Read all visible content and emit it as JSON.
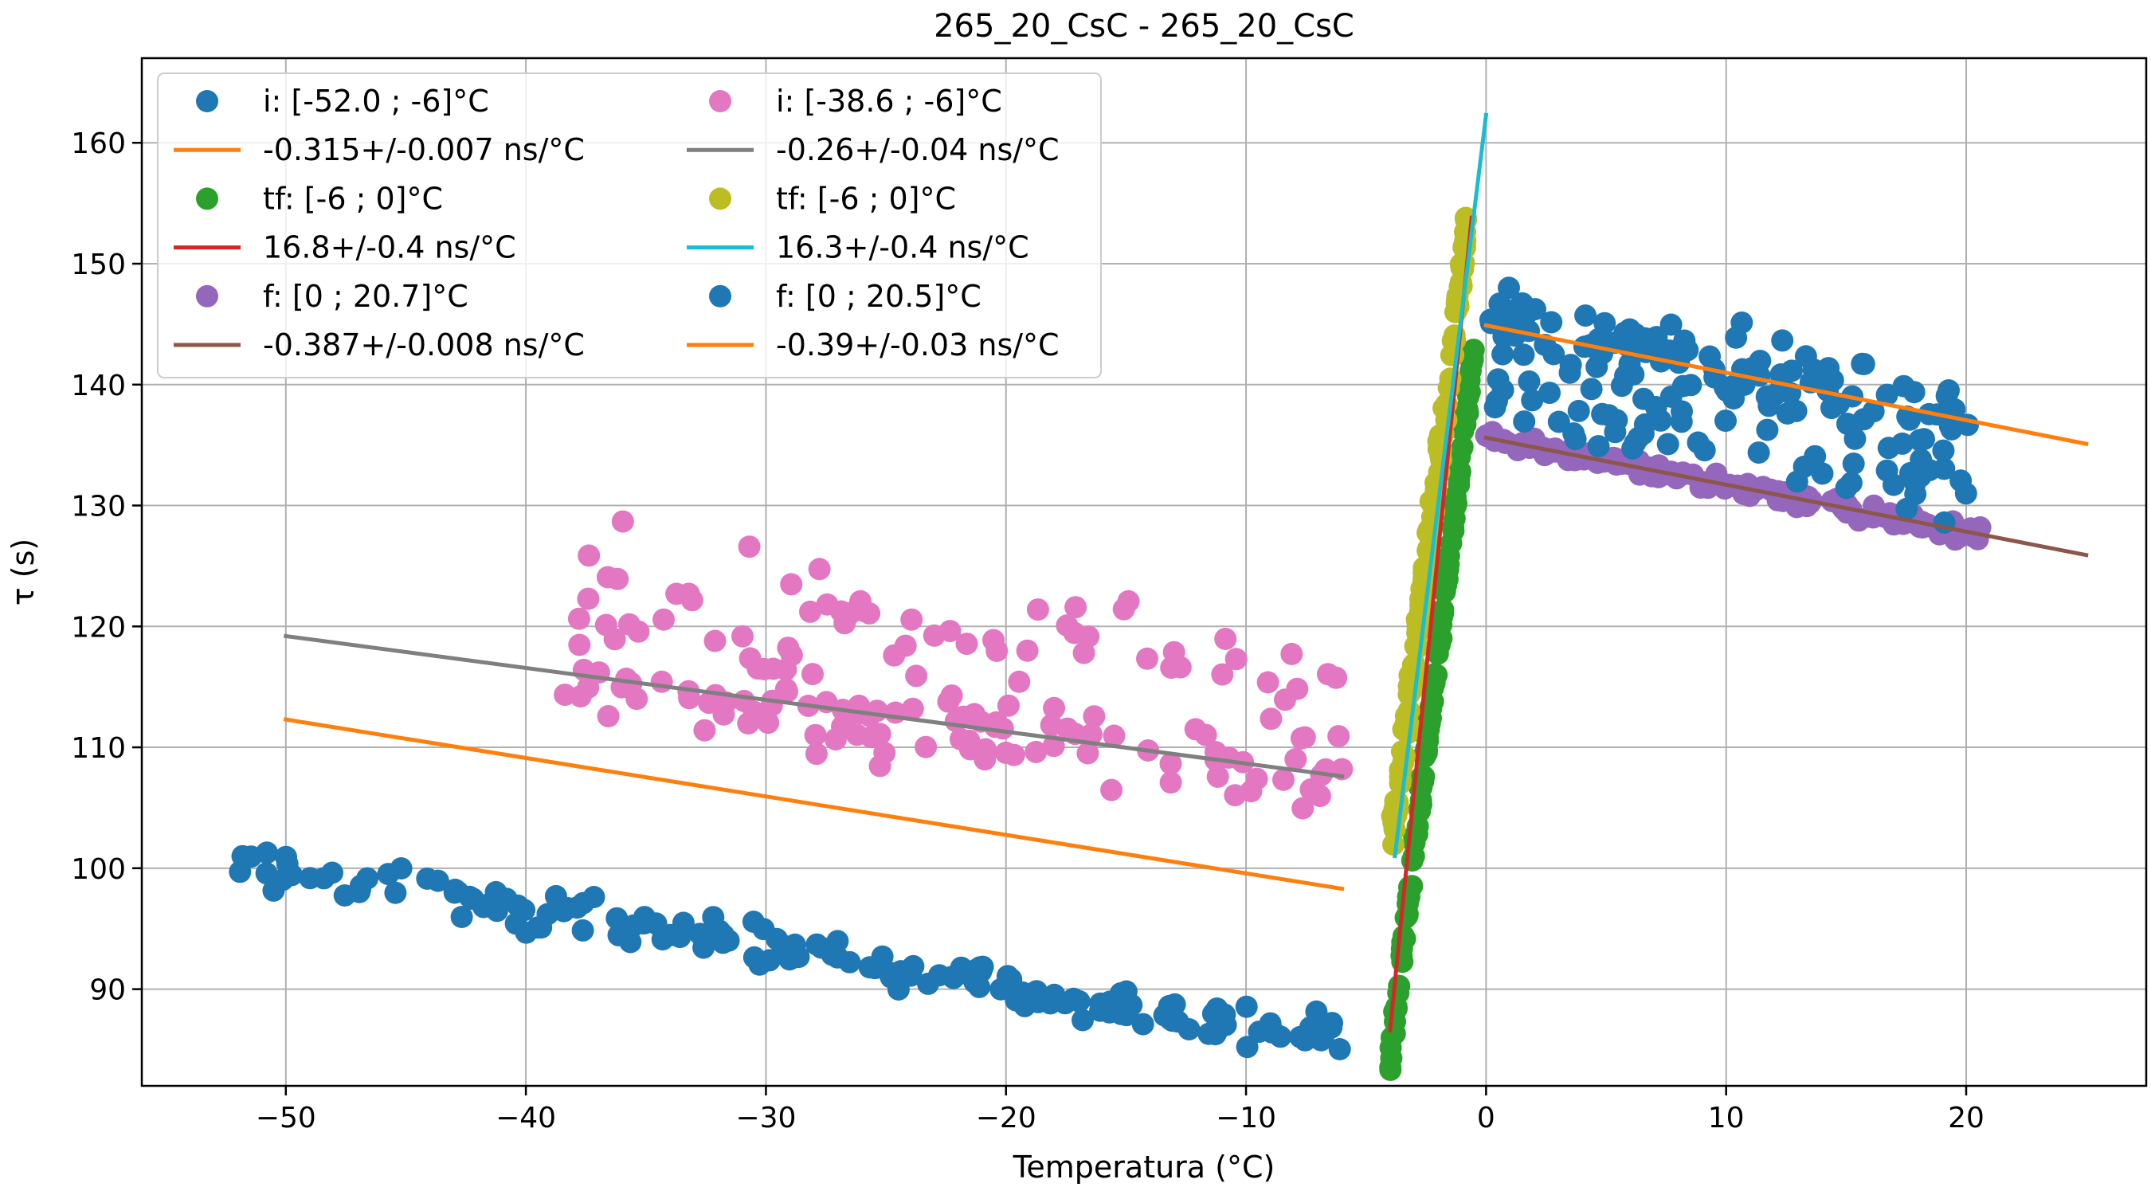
{
  "colors": {
    "blue": "#1f77b4",
    "orange": "#ff7f0e",
    "green": "#2ca02c",
    "red": "#d62728",
    "purple": "#9467bd",
    "brown": "#8c564b",
    "pink": "#e377c2",
    "gray": "#7f7f7f",
    "olive": "#bcbd22",
    "cyan": "#17becf"
  },
  "chart_data": {
    "type": "scatter",
    "title": "265_20_CsC - 265_20_CsC",
    "xlabel": "Temperatura (°C)",
    "ylabel": "τ (s)",
    "xlim": [
      -56,
      27.5
    ],
    "ylim": [
      82,
      167
    ],
    "xticks": [
      -50,
      -40,
      -30,
      -20,
      -10,
      0,
      10,
      20
    ],
    "xtick_labels": [
      "−50",
      "−40",
      "−30",
      "−20",
      "−10",
      "0",
      "10",
      "20"
    ],
    "yticks": [
      90,
      100,
      110,
      120,
      130,
      140,
      150,
      160
    ],
    "ytick_labels": [
      "90",
      "100",
      "110",
      "120",
      "130",
      "140",
      "150",
      "160"
    ],
    "grid": true,
    "legend_position": "upper-left",
    "scatter_series": [
      {
        "name": "i: [-52.0 ; -6]°C",
        "color": "#1f77b4",
        "x_range": [
          -52.0,
          -6.0
        ],
        "base_at_x0": 84.0,
        "slope": -0.315,
        "noise": 2.0
      },
      {
        "name": "tf: [-6 ; 0]°C",
        "color": "#2ca02c",
        "x_range": [
          -4.0,
          -0.5
        ],
        "base_at_x0": 151.6,
        "slope": 16.8,
        "noise": 1.5
      },
      {
        "name": "f: [0 ; 20.7]°C",
        "color": "#9467bd",
        "x_range": [
          0.0,
          20.7
        ],
        "base_at_x0": 135.6,
        "slope": -0.387,
        "noise": 0.8
      },
      {
        "name": "i: [-38.6 ; -6]°C",
        "color": "#e377c2",
        "x_range": [
          -38.6,
          -6.0
        ],
        "base_at_x0": 106.0,
        "slope": -0.26,
        "noise": 5.0
      },
      {
        "name": "tf: [-6 ; 0]°C",
        "color": "#bcbd22",
        "x_range": [
          -4.0,
          -0.8
        ],
        "base_at_x0": 166.0,
        "slope": 16.3,
        "noise": 2.0
      },
      {
        "name": "f: [0 ; 20.5]°C",
        "color": "#1f77b4",
        "x_range": [
          0.0,
          20.5
        ],
        "base_at_x0": 145.0,
        "slope": -0.39,
        "noise": 4.0
      }
    ],
    "fit_lines": [
      {
        "name": "-0.315+/-0.007 ns/°C",
        "color": "#ff7f0e",
        "x": [
          -50,
          -6
        ],
        "y": [
          112.3,
          98.3
        ]
      },
      {
        "name": "16.8+/-0.4 ns/°C",
        "color": "#d62728",
        "x": [
          -4,
          -0.6
        ],
        "y": [
          86.6,
          153.8
        ]
      },
      {
        "name": "-0.387+/-0.008 ns/°C",
        "color": "#8c564b",
        "x": [
          0,
          25
        ],
        "y": [
          135.6,
          125.9
        ]
      },
      {
        "name": "-0.26+/-0.04 ns/°C",
        "color": "#7f7f7f",
        "x": [
          -50,
          -6
        ],
        "y": [
          119.2,
          107.6
        ]
      },
      {
        "name": "16.3+/-0.4 ns/°C",
        "color": "#17becf",
        "x": [
          -3.8,
          0
        ],
        "y": [
          101.0,
          162.3
        ]
      },
      {
        "name": "-0.39+/-0.03 ns/°C",
        "color": "#ff7f0e",
        "x": [
          0,
          25
        ],
        "y": [
          144.9,
          135.1
        ]
      }
    ],
    "legend": {
      "columns": [
        [
          {
            "kind": "marker",
            "label": "i: [-52.0 ; -6]°C",
            "color": "#1f77b4"
          },
          {
            "kind": "line",
            "label": "-0.315+/-0.007 ns/°C",
            "color": "#ff7f0e"
          },
          {
            "kind": "marker",
            "label": "tf: [-6 ; 0]°C",
            "color": "#2ca02c"
          },
          {
            "kind": "line",
            "label": "16.8+/-0.4 ns/°C",
            "color": "#d62728"
          },
          {
            "kind": "marker",
            "label": "f: [0 ; 20.7]°C",
            "color": "#9467bd"
          },
          {
            "kind": "line",
            "label": "-0.387+/-0.008 ns/°C",
            "color": "#8c564b"
          }
        ],
        [
          {
            "kind": "marker",
            "label": "i: [-38.6 ; -6]°C",
            "color": "#e377c2"
          },
          {
            "kind": "line",
            "label": "-0.26+/-0.04 ns/°C",
            "color": "#7f7f7f"
          },
          {
            "kind": "marker",
            "label": "tf: [-6 ; 0]°C",
            "color": "#bcbd22"
          },
          {
            "kind": "line",
            "label": "16.3+/-0.4 ns/°C",
            "color": "#17becf"
          },
          {
            "kind": "marker",
            "label": "f: [0 ; 20.5]°C",
            "color": "#1f77b4"
          },
          {
            "kind": "line",
            "label": "-0.39+/-0.03 ns/°C",
            "color": "#ff7f0e"
          }
        ]
      ]
    }
  }
}
